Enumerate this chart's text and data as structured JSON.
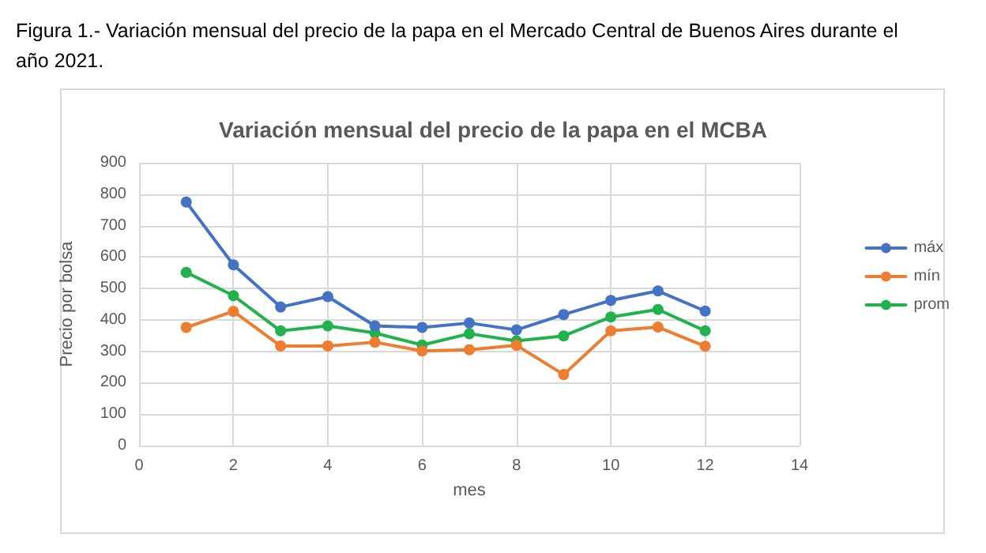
{
  "chart_data": {
    "type": "line",
    "title": "Variación mensual del precio de la papa en el MCBA",
    "annotations": [
      "Figura 1.- Variación mensual del precio de la papa en el Mercado Central de Buenos Aires durante el año 2021."
    ],
    "xlabel": "mes",
    "ylabel": "Precio por bolsa",
    "x": [
      1,
      2,
      3,
      4,
      5,
      6,
      7,
      8,
      9,
      10,
      11,
      12
    ],
    "series": [
      {
        "name": "máx",
        "color": "#4472c4",
        "values": [
          775,
          575,
          441,
          474,
          381,
          376,
          390,
          368,
          417,
          462,
          492,
          428
        ]
      },
      {
        "name": "mín",
        "color": "#ed7d31",
        "values": [
          376,
          427,
          317,
          317,
          329,
          301,
          305,
          319,
          226,
          365,
          377,
          316
        ]
      },
      {
        "name": "prom",
        "color": "#22b14c",
        "values": [
          551,
          477,
          365,
          381,
          358,
          320,
          356,
          333,
          349,
          409,
          433,
          365
        ]
      }
    ],
    "xlim": [
      0,
      14
    ],
    "xticks": [
      0,
      2,
      4,
      6,
      8,
      10,
      12,
      14
    ],
    "ylim": [
      0,
      900
    ],
    "yticks": [
      0,
      100,
      200,
      300,
      400,
      500,
      600,
      700,
      800,
      900
    ],
    "grid": true,
    "legend": "right",
    "marker": "circle",
    "line_style": "solid"
  }
}
